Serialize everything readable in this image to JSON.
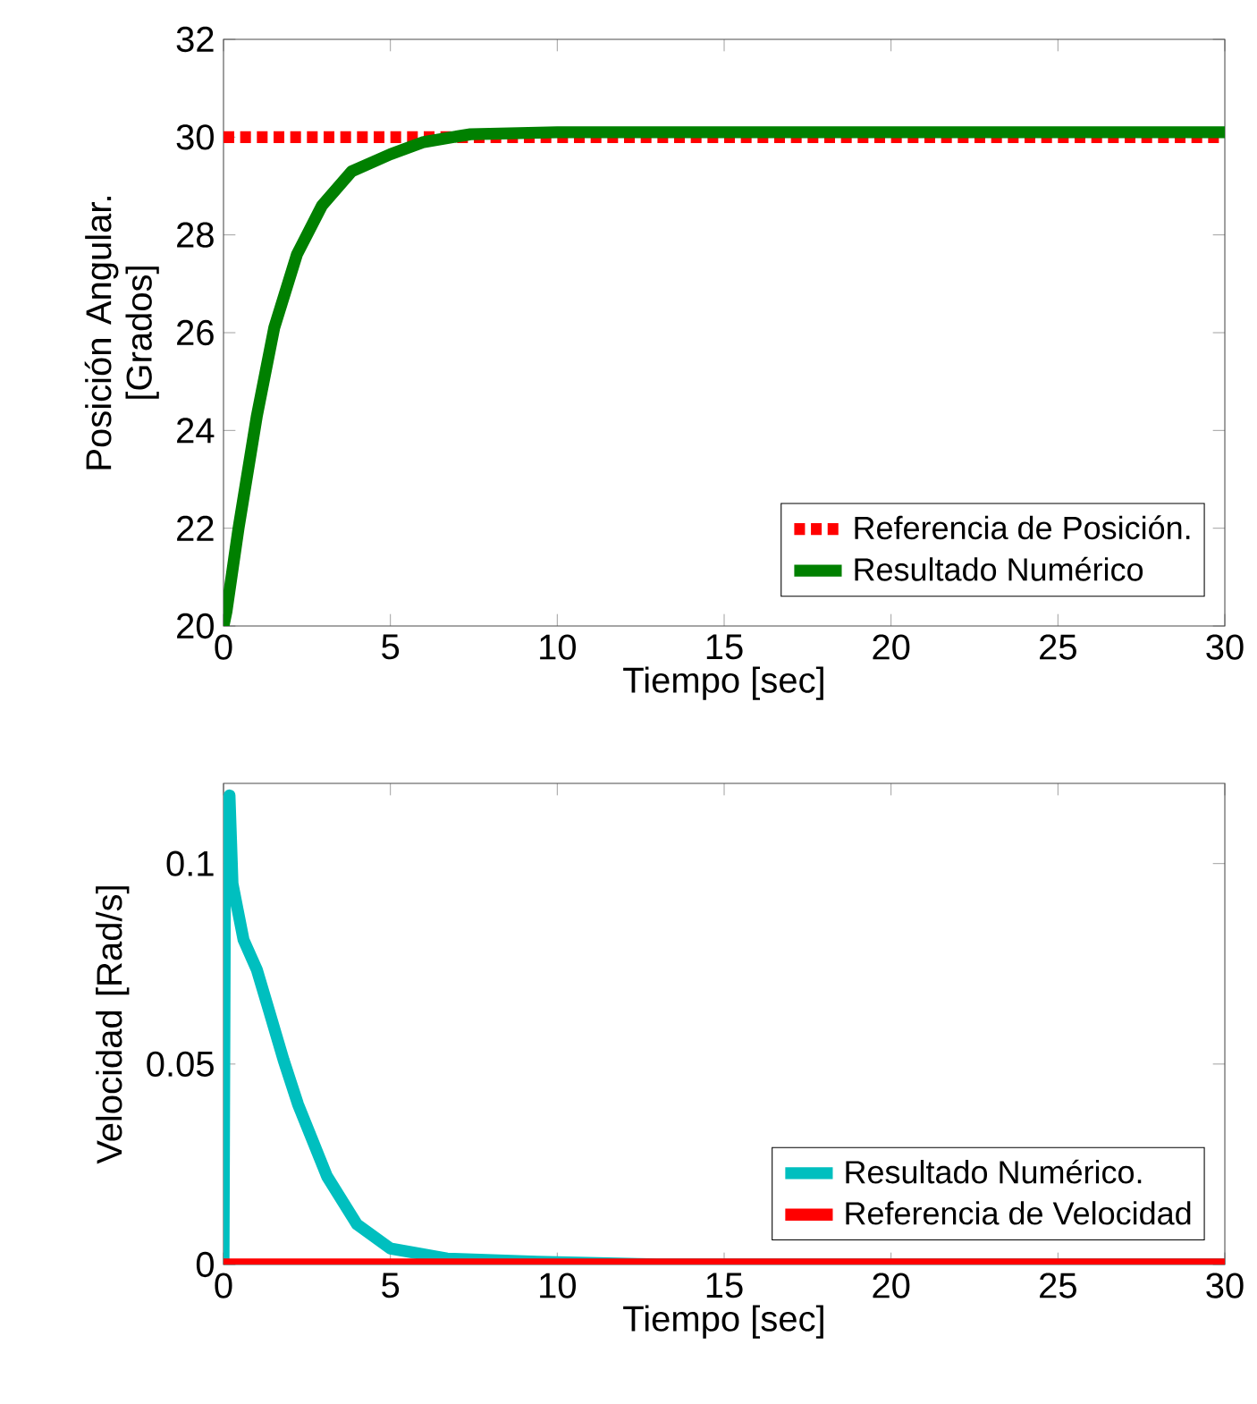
{
  "chart_data": [
    {
      "type": "line",
      "xlabel": "Tiempo [sec]",
      "ylabel": "Posición Angular. [Grados]",
      "xlim": [
        0,
        30
      ],
      "ylim": [
        20,
        32
      ],
      "xticks": [
        0,
        5,
        10,
        15,
        20,
        25,
        30
      ],
      "yticks": [
        20,
        22,
        24,
        26,
        28,
        30,
        32
      ],
      "legend": "bottom right",
      "grid": false,
      "series": [
        {
          "name": "Referencia de Posición.",
          "color": "#ff0000",
          "line_style": "dashed",
          "x": [
            0,
            30
          ],
          "values": [
            30,
            30
          ]
        },
        {
          "name": "Resultado Numérico",
          "color": "#008000",
          "line_style": "solid",
          "x": [
            0,
            0.09,
            0.45,
            1.0,
            1.52,
            2.2,
            2.95,
            3.84,
            5.0,
            6.0,
            7.4,
            10,
            15,
            20,
            25,
            30
          ],
          "values": [
            20,
            20.3,
            22.0,
            24.3,
            26.1,
            27.6,
            28.6,
            29.3,
            29.65,
            29.9,
            30.06,
            30.1,
            30.1,
            30.1,
            30.1,
            30.1
          ]
        }
      ]
    },
    {
      "type": "line",
      "xlabel": "Tiempo [sec]",
      "ylabel": "Velocidad [Rad/s]",
      "xlim": [
        0,
        30
      ],
      "ylim": [
        0,
        0.12
      ],
      "xticks": [
        0,
        5,
        10,
        15,
        20,
        25,
        30
      ],
      "yticks": [
        0,
        0.05,
        0.1
      ],
      "legend": "bottom right",
      "grid": false,
      "series": [
        {
          "name": "Resultado Numérico.",
          "color": "#00bfbf",
          "line_style": "solid",
          "x": [
            0,
            0.05,
            0.18,
            0.27,
            0.6,
            1.0,
            1.34,
            1.8,
            2.23,
            3.1,
            4.0,
            5.0,
            6.7,
            9.4,
            13,
            30
          ],
          "values": [
            0,
            0.11,
            0.117,
            0.095,
            0.081,
            0.0735,
            0.064,
            0.051,
            0.04,
            0.022,
            0.01,
            0.004,
            0.0015,
            0.0007,
            0,
            0
          ]
        },
        {
          "name": "Referencia de Velocidad",
          "color": "#ff0000",
          "line_style": "solid",
          "x": [
            0,
            30
          ],
          "values": [
            0,
            0
          ]
        }
      ]
    }
  ]
}
